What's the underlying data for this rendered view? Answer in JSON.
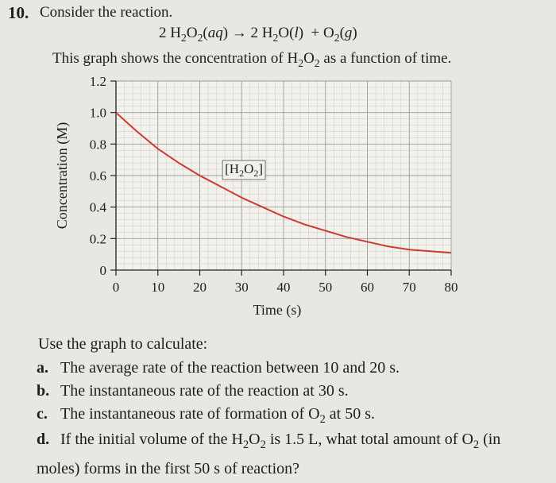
{
  "question": {
    "number": "10.",
    "prompt": "Consider the reaction.",
    "equation": {
      "lhs_coef": "2",
      "lhs": "H2O2(aq)",
      "arrow": "→",
      "rhs1_coef": "2",
      "rhs1": "H2O(l)",
      "plus": "+",
      "rhs2": "O2(g)"
    },
    "description": "This graph shows the concentration of H2O2 as a function of time."
  },
  "chart_data": {
    "type": "line",
    "xlabel": "Time (s)",
    "ylabel": "Concentration (M)",
    "xlim": [
      0,
      80
    ],
    "ylim": [
      0,
      1.2
    ],
    "xticks": [
      "0",
      "10",
      "20",
      "30",
      "40",
      "50",
      "60",
      "70",
      "80"
    ],
    "yticks": [
      "0",
      "0.2",
      "0.4",
      "0.6",
      "0.8",
      "1.0",
      "1.2"
    ],
    "grid": true,
    "curve_label": "[H2O2]",
    "series": [
      {
        "name": "[H2O2]",
        "color": "#cc3b33",
        "x": [
          0,
          5,
          10,
          15,
          20,
          25,
          30,
          35,
          40,
          45,
          50,
          55,
          60,
          65,
          70,
          75,
          80
        ],
        "y": [
          1.0,
          0.88,
          0.77,
          0.68,
          0.6,
          0.53,
          0.46,
          0.4,
          0.34,
          0.29,
          0.25,
          0.21,
          0.18,
          0.15,
          0.13,
          0.12,
          0.11
        ]
      }
    ]
  },
  "tasks": {
    "intro": "Use the graph to calculate:",
    "items": [
      {
        "label": "a.",
        "text": "The average rate of the reaction between 10 and 20 s."
      },
      {
        "label": "b.",
        "text": "The instantaneous rate of the reaction at 30 s."
      },
      {
        "label": "c.",
        "text": "The instantaneous rate of formation of O2 at 50 s."
      },
      {
        "label": "d.",
        "text": "If the initial volume of the H2O2 is 1.5 L, what total amount of O2 (in moles) forms in the first 50 s of reaction?"
      }
    ]
  }
}
